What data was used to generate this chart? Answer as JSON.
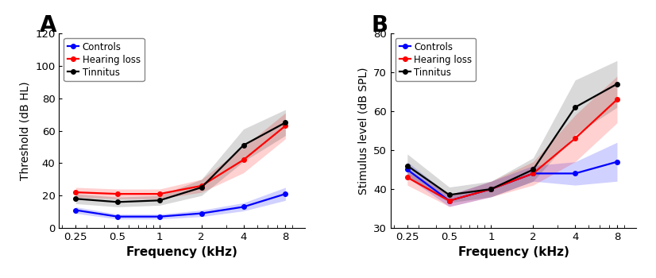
{
  "frequencies": [
    0.25,
    0.5,
    1,
    2,
    4,
    8
  ],
  "panel_A": {
    "title": "A",
    "ylabel": "Threshold (dB HL)",
    "xlabel": "Frequency (kHz)",
    "ylim": [
      0,
      120
    ],
    "yticks": [
      0,
      20,
      40,
      60,
      80,
      100,
      120
    ],
    "controls_mean": [
      11,
      7,
      7,
      9,
      13,
      21
    ],
    "controls_sem": [
      2,
      1.5,
      1.5,
      2,
      2.5,
      4
    ],
    "hearing_loss_mean": [
      22,
      21,
      21,
      26,
      42,
      63
    ],
    "hearing_loss_sem": [
      3,
      3,
      3,
      4,
      8,
      8
    ],
    "tinnitus_mean": [
      18,
      16,
      17,
      25,
      51,
      65
    ],
    "tinnitus_sem": [
      3,
      3,
      3,
      5,
      10,
      8
    ]
  },
  "panel_B": {
    "title": "B",
    "ylabel": "Stimulus level (dB SPL)",
    "xlabel": "Frequency (kHz)",
    "ylim": [
      30,
      80
    ],
    "yticks": [
      30,
      40,
      50,
      60,
      70,
      80
    ],
    "controls_mean": [
      45,
      37,
      40,
      44,
      44,
      47
    ],
    "controls_sem": [
      2,
      1.5,
      2,
      2,
      3,
      5
    ],
    "hearing_loss_mean": [
      43,
      37,
      40,
      44,
      53,
      63
    ],
    "hearing_loss_sem": [
      2,
      1.5,
      2,
      3,
      6,
      6
    ],
    "tinnitus_mean": [
      46,
      38.5,
      40,
      45,
      61,
      67
    ],
    "tinnitus_sem": [
      3,
      2,
      2,
      3,
      7,
      6
    ]
  },
  "colors": {
    "controls": "#0000FF",
    "hearing_loss": "#FF0000",
    "tinnitus": "#000000"
  },
  "fill_alphas": {
    "controls": 0.18,
    "hearing_loss": 0.18,
    "tinnitus": 0.15
  },
  "legend_labels": [
    "Controls",
    "Hearing loss",
    "Tinnitus"
  ],
  "legend_text_color": "#000000",
  "marker": "o",
  "marker_size": 4,
  "linewidth": 1.6
}
